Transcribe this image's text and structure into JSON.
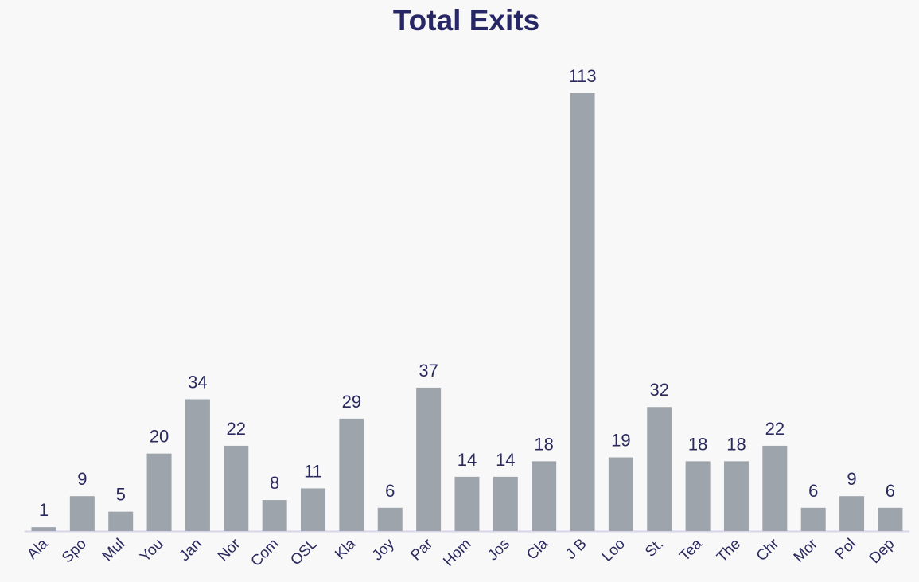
{
  "chart_data": {
    "type": "bar",
    "title": "Total Exits",
    "categories": [
      "Ala",
      "Spo",
      "Mul",
      "You",
      "Jan",
      "Nor",
      "Com",
      "OSL",
      "Kla",
      "Joy",
      "Par",
      "Hom",
      "Jos",
      "Cla",
      "J B",
      "Loo",
      "St.",
      "Tea",
      "The",
      "Chr",
      "Mor",
      "Pol",
      "Dep"
    ],
    "values": [
      1,
      9,
      5,
      20,
      34,
      22,
      8,
      11,
      29,
      6,
      37,
      14,
      14,
      18,
      113,
      19,
      32,
      18,
      18,
      22,
      6,
      9,
      6
    ],
    "color": "#9ea4ab"
  }
}
